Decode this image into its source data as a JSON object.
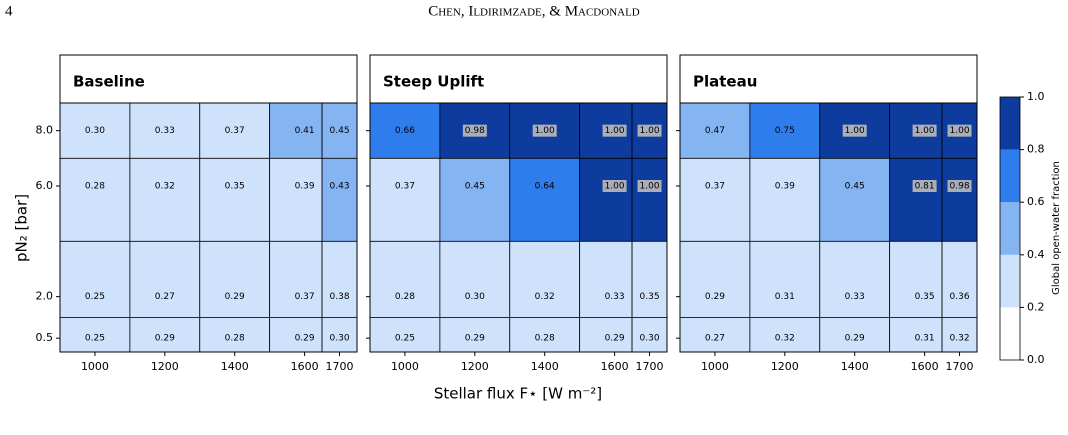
{
  "header": {
    "page_number": "4",
    "authors": "Chen, Ildirimzade, & Macdonald"
  },
  "xlabel": "Stellar flux F⋆ [W m⁻²]",
  "ylabel": "pN₂ [bar]",
  "colorbar": {
    "label": "Global open-water fraction",
    "ticks": [
      {
        "value": 0,
        "label": "0.0"
      },
      {
        "value": 0.2,
        "label": "0.2"
      },
      {
        "value": 0.4,
        "label": "0.4"
      },
      {
        "value": 0.6,
        "label": "0.6"
      },
      {
        "value": 0.8,
        "label": "0.8"
      },
      {
        "value": 1,
        "label": "1.0"
      }
    ],
    "colors": [
      "#ffffff",
      "#cfe2fb",
      "#84b4f2",
      "#2f7cec",
      "#0d3c9e"
    ]
  },
  "chart_data": [
    {
      "type": "heatmap",
      "title": "Baseline",
      "xlim": [
        900,
        1750
      ],
      "ylim": [
        0,
        9
      ],
      "xbins": [
        900,
        1100,
        1300,
        1500,
        1650,
        1750
      ],
      "ybins": [
        9,
        7,
        4,
        1.25,
        0
      ],
      "xticks": [
        1000,
        1200,
        1400,
        1600,
        1700
      ],
      "yticks": [
        {
          "value": 8,
          "label": "8.0"
        },
        {
          "value": 6,
          "label": "6.0"
        },
        {
          "value": 2,
          "label": "2.0"
        },
        0.5
      ],
      "values": [
        [
          0.3,
          0.33,
          0.37,
          0.41,
          0.45
        ],
        [
          0.28,
          0.32,
          0.35,
          0.39,
          0.43
        ],
        [
          0.25,
          0.27,
          0.29,
          0.37,
          0.38
        ],
        [
          0.25,
          0.29,
          0.28,
          0.29,
          0.3
        ]
      ],
      "value_labels": [
        [
          "0.30",
          "0.33",
          "0.37",
          "0.41",
          "0.45"
        ],
        [
          "0.28",
          "0.32",
          "0.35",
          "0.39",
          "0.43"
        ],
        [
          "0.25",
          "0.27",
          "0.29",
          "0.37",
          "0.38"
        ],
        [
          "0.25",
          "0.29",
          "0.28",
          "0.29",
          "0.30"
        ]
      ]
    },
    {
      "type": "heatmap",
      "title": "Steep Uplift",
      "xlim": [
        900,
        1750
      ],
      "ylim": [
        0,
        9
      ],
      "xbins": [
        900,
        1100,
        1300,
        1500,
        1650,
        1750
      ],
      "ybins": [
        9,
        7,
        4,
        1.25,
        0
      ],
      "xticks": [
        1000,
        1200,
        1400,
        1600,
        1700
      ],
      "yticks": [
        {
          "value": 8,
          "label": "8.0"
        },
        {
          "value": 6,
          "label": "6.0"
        },
        {
          "value": 2,
          "label": "2.0"
        },
        0.5
      ],
      "values": [
        [
          0.66,
          0.98,
          1.0,
          1.0,
          1.0
        ],
        [
          0.37,
          0.45,
          0.64,
          1.0,
          1.0
        ],
        [
          0.28,
          0.3,
          0.32,
          0.33,
          0.35
        ],
        [
          0.25,
          0.29,
          0.28,
          0.29,
          0.3
        ]
      ],
      "value_labels": [
        [
          "0.66",
          "0.98",
          "1.00",
          "1.00",
          "1.00"
        ],
        [
          "0.37",
          "0.45",
          "0.64",
          "1.00",
          "1.00"
        ],
        [
          "0.28",
          "0.30",
          "0.32",
          "0.33",
          "0.35"
        ],
        [
          "0.25",
          "0.29",
          "0.28",
          "0.29",
          "0.30"
        ]
      ]
    },
    {
      "type": "heatmap",
      "title": "Plateau",
      "xlim": [
        900,
        1750
      ],
      "ylim": [
        0,
        9
      ],
      "xbins": [
        900,
        1100,
        1300,
        1500,
        1650,
        1750
      ],
      "ybins": [
        9,
        7,
        4,
        1.25,
        0
      ],
      "xticks": [
        1000,
        1200,
        1400,
        1600,
        1700
      ],
      "yticks": [
        {
          "value": 8,
          "label": "8.0"
        },
        {
          "value": 6,
          "label": "6.0"
        },
        {
          "value": 2,
          "label": "2.0"
        },
        0.5
      ],
      "values": [
        [
          0.47,
          0.75,
          1.0,
          1.0,
          1.0
        ],
        [
          0.37,
          0.39,
          0.45,
          0.81,
          0.98
        ],
        [
          0.29,
          0.31,
          0.33,
          0.35,
          0.36
        ],
        [
          0.27,
          0.32,
          0.29,
          0.31,
          0.32
        ]
      ],
      "value_labels": [
        [
          "0.47",
          "0.75",
          "1.00",
          "1.00",
          "1.00"
        ],
        [
          "0.37",
          "0.39",
          "0.45",
          "0.81",
          "0.98"
        ],
        [
          "0.29",
          "0.31",
          "0.33",
          "0.35",
          "0.36"
        ],
        [
          "0.27",
          "0.32",
          "0.29",
          "0.31",
          "0.32"
        ]
      ]
    }
  ]
}
